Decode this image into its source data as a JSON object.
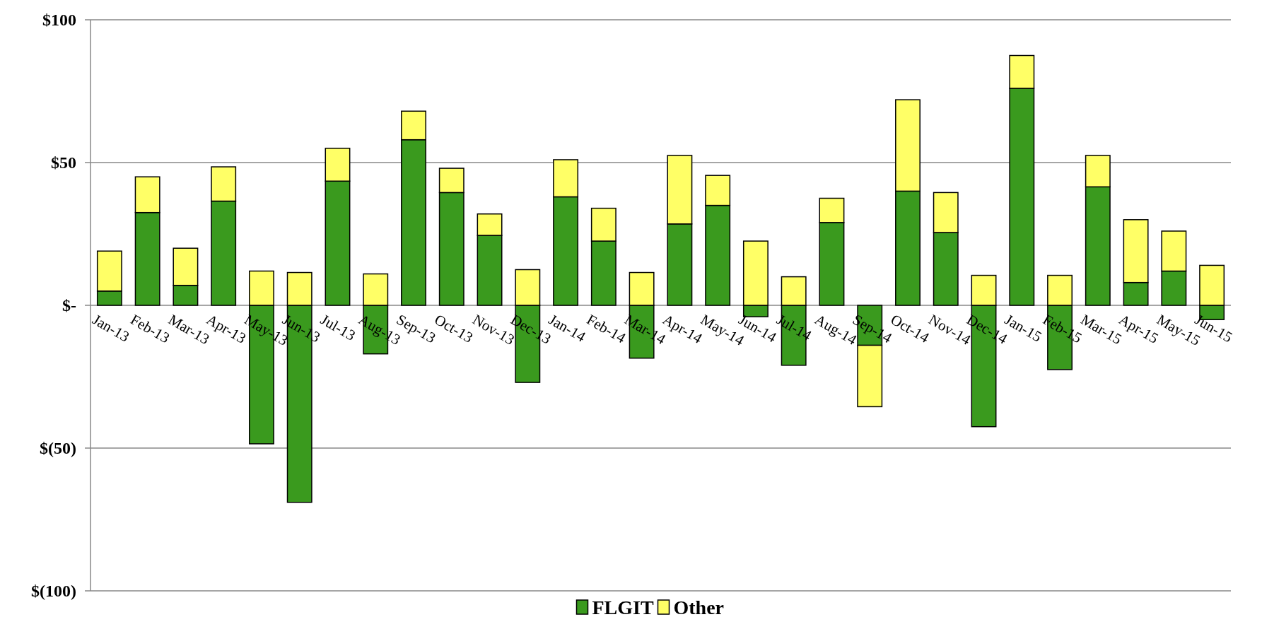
{
  "chart_data": {
    "type": "bar",
    "stacked": true,
    "categories": [
      "Jan-13",
      "Feb-13",
      "Mar-13",
      "Apr-13",
      "May-13",
      "Jun-13",
      "Jul-13",
      "Aug-13",
      "Sep-13",
      "Oct-13",
      "Nov-13",
      "Dec-13",
      "Jan-14",
      "Feb-14",
      "Mar-14",
      "Apr-14",
      "May-14",
      "Jun-14",
      "Jul-14",
      "Aug-14",
      "Sep-14",
      "Oct-14",
      "Nov-14",
      "Dec-14",
      "Jan-15",
      "Feb-15",
      "Mar-15",
      "Apr-15",
      "May-15",
      "Jun-15"
    ],
    "series": [
      {
        "name": "FLGIT",
        "color": "#3a9a1e",
        "values": [
          5,
          32.5,
          7,
          36.5,
          -48.5,
          -69,
          43.5,
          -17,
          58,
          39.5,
          24.5,
          -27,
          38,
          22.5,
          -18.5,
          28.5,
          35,
          -4,
          -21,
          29,
          -14,
          40,
          25.5,
          -42.5,
          76,
          -22.5,
          41.5,
          8,
          12,
          -5
        ]
      },
      {
        "name": "Other",
        "color": "#ffff66",
        "values": [
          14,
          12.5,
          13,
          12,
          12,
          11.5,
          11.5,
          11,
          10,
          8.5,
          7.5,
          12.5,
          13,
          11.5,
          11.5,
          24,
          10.5,
          22.5,
          10,
          8.5,
          -21.5,
          32,
          14,
          10.5,
          11.5,
          10.5,
          11,
          22,
          14,
          14
        ]
      }
    ],
    "ylim": [
      -100,
      100
    ],
    "yticks": [
      {
        "value": -100,
        "label": "$(100)"
      },
      {
        "value": -50,
        "label": "$(50)"
      },
      {
        "value": 0,
        "label": "$-"
      },
      {
        "value": 50,
        "label": "$50"
      },
      {
        "value": 100,
        "label": "$100"
      }
    ],
    "grid": "y",
    "legend": "bottom"
  }
}
